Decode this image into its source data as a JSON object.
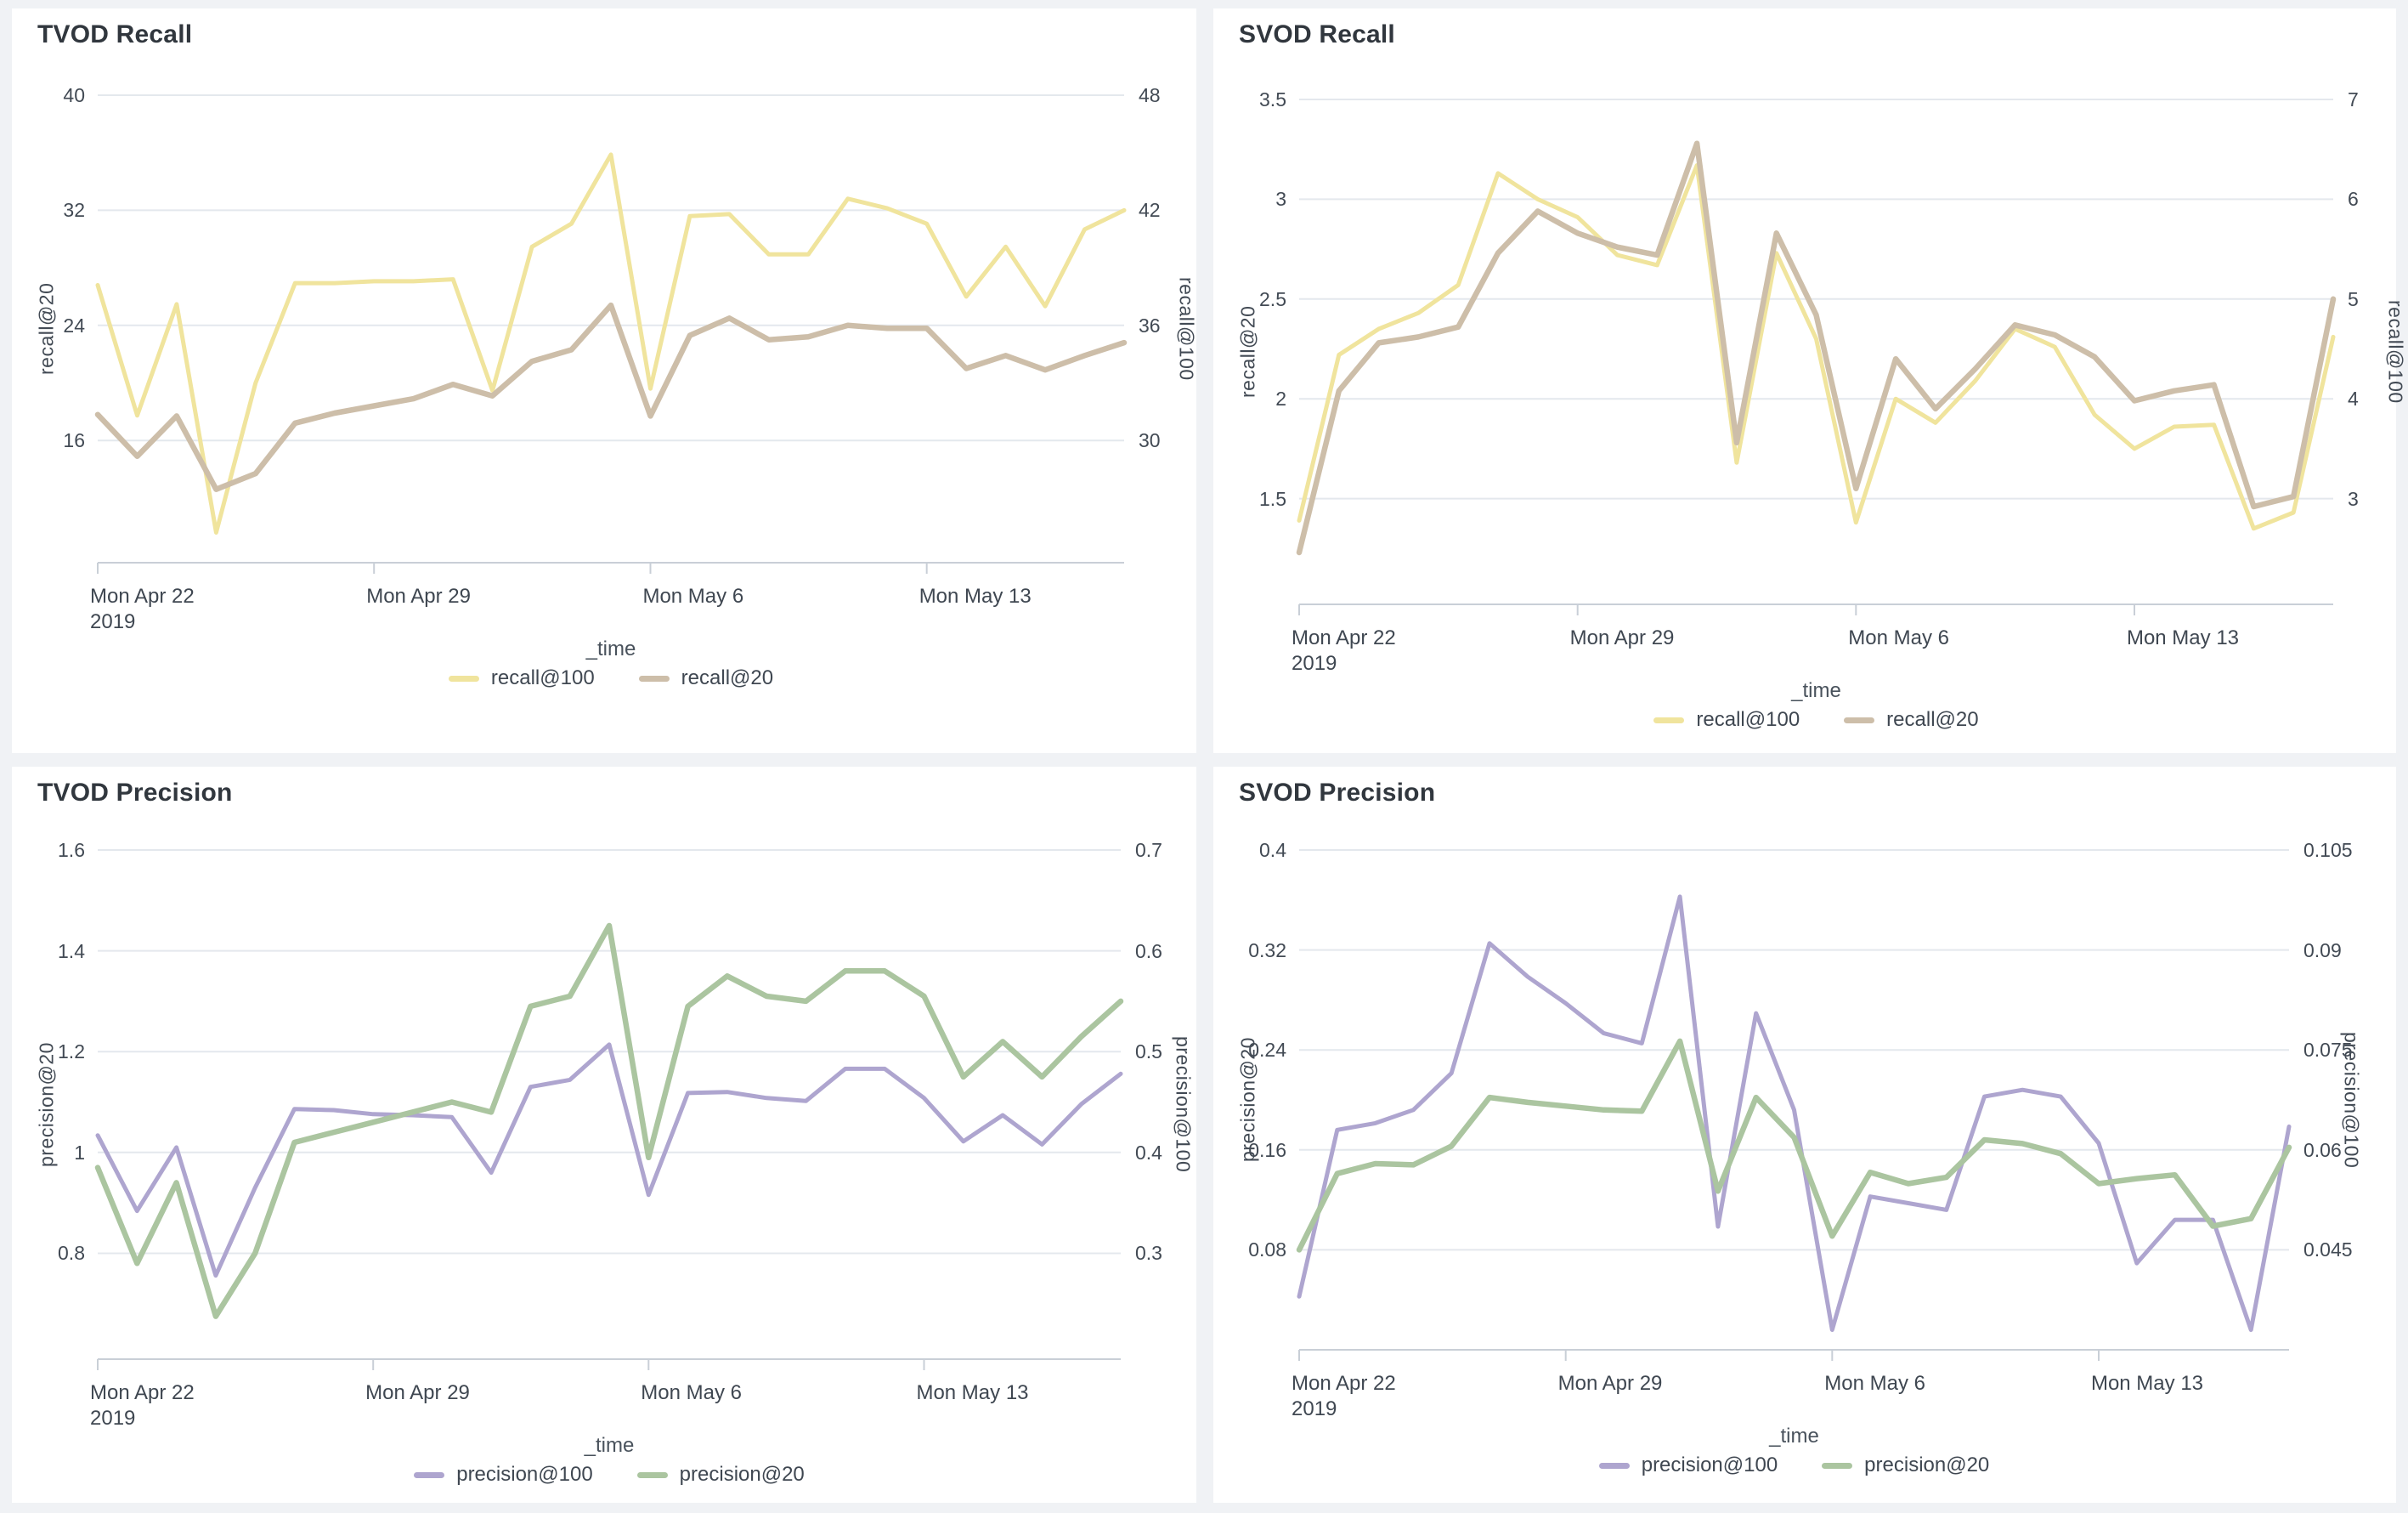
{
  "page": {
    "background_color": "#F0F2F5",
    "card_color": "#FFFFFF",
    "grid_color": "#E4E8ED",
    "axis_line_color": "#C9CFD7",
    "year_label": "2019"
  },
  "colors": {
    "recall@100": "#F0E49D",
    "recall@20": "#CDBEA9",
    "precision@100": "#AEA5CF",
    "precision@20": "#ABC5A0"
  },
  "chart_data": [
    {
      "type": "line",
      "title": "TVOD Recall",
      "xlabel": "_time",
      "x": [
        "2019-04-22",
        "2019-04-23",
        "2019-04-24",
        "2019-04-25",
        "2019-04-26",
        "2019-04-27",
        "2019-04-28",
        "2019-04-29",
        "2019-04-30",
        "2019-05-01",
        "2019-05-02",
        "2019-05-03",
        "2019-05-04",
        "2019-05-05",
        "2019-05-06",
        "2019-05-07",
        "2019-05-08",
        "2019-05-09",
        "2019-05-10",
        "2019-05-11",
        "2019-05-12",
        "2019-05-13",
        "2019-05-14",
        "2019-05-15",
        "2019-05-16",
        "2019-05-17",
        "2019-05-18"
      ],
      "x_tick_labels": [
        "Mon Apr 22",
        "Mon Apr 29",
        "Mon May 6",
        "Mon May 13"
      ],
      "x_tick_indices": [
        0,
        7,
        14,
        21
      ],
      "left_axis": {
        "label": "recall@20",
        "range": [
          7.5,
          40
        ]
      },
      "right_axis": {
        "label": "recall@100"
      },
      "y_ticks": [
        {
          "left_value": 16,
          "left_label": "16",
          "right_label": "30"
        },
        {
          "left_value": 24,
          "left_label": "24",
          "right_label": "36"
        },
        {
          "left_value": 32,
          "left_label": "32",
          "right_label": "42"
        },
        {
          "left_value": 40,
          "left_label": "40",
          "right_label": "48"
        }
      ],
      "series": [
        {
          "name": "recall@100",
          "axis": "right",
          "values": [
            38.1,
            31.3,
            37.1,
            25.2,
            33.0,
            38.2,
            38.2,
            38.3,
            38.3,
            38.4,
            32.6,
            40.1,
            41.3,
            44.9,
            32.7,
            41.7,
            41.8,
            39.7,
            39.7,
            42.6,
            42.1,
            41.3,
            37.5,
            40.1,
            37.0,
            41.0,
            42.0
          ]
        },
        {
          "name": "recall@20",
          "axis": "left",
          "values": [
            17.8,
            14.9,
            17.7,
            12.6,
            13.7,
            17.2,
            17.9,
            18.4,
            18.9,
            19.9,
            19.1,
            21.5,
            22.3,
            25.4,
            17.7,
            23.3,
            24.5,
            23.0,
            23.2,
            24.0,
            23.8,
            23.8,
            21.0,
            21.9,
            20.9,
            21.9,
            22.8
          ]
        }
      ]
    },
    {
      "type": "line",
      "title": "SVOD Recall",
      "xlabel": "_time",
      "x": [
        "2019-04-22",
        "2019-04-23",
        "2019-04-24",
        "2019-04-25",
        "2019-04-26",
        "2019-04-27",
        "2019-04-28",
        "2019-04-29",
        "2019-04-30",
        "2019-05-01",
        "2019-05-02",
        "2019-05-03",
        "2019-05-04",
        "2019-05-05",
        "2019-05-06",
        "2019-05-07",
        "2019-05-08",
        "2019-05-09",
        "2019-05-10",
        "2019-05-11",
        "2019-05-12",
        "2019-05-13",
        "2019-05-14",
        "2019-05-15",
        "2019-05-16",
        "2019-05-17",
        "2019-05-18"
      ],
      "x_tick_labels": [
        "Mon Apr 22",
        "Mon Apr 29",
        "Mon May 6",
        "Mon May 13"
      ],
      "x_tick_indices": [
        0,
        7,
        14,
        21
      ],
      "left_axis": {
        "label": "recall@20",
        "range": [
          0.97,
          3.5
        ]
      },
      "right_axis": {
        "label": "recall@100"
      },
      "y_ticks": [
        {
          "left_value": 1.5,
          "left_label": "1.5",
          "right_label": "3"
        },
        {
          "left_value": 2,
          "left_label": "2",
          "right_label": "4"
        },
        {
          "left_value": 2.5,
          "left_label": "2.5",
          "right_label": "5"
        },
        {
          "left_value": 3,
          "left_label": "3",
          "right_label": "6"
        },
        {
          "left_value": 3.5,
          "left_label": "3.5",
          "right_label": "7"
        }
      ],
      "series": [
        {
          "name": "recall@100",
          "axis": "right",
          "values": [
            2.78,
            4.44,
            4.7,
            4.86,
            5.14,
            6.26,
            6.0,
            5.82,
            5.44,
            5.34,
            6.34,
            3.36,
            5.46,
            4.6,
            2.76,
            4.0,
            3.76,
            4.18,
            4.7,
            4.52,
            3.84,
            3.5,
            3.72,
            3.74,
            2.7,
            2.86,
            4.62
          ]
        },
        {
          "name": "recall@20",
          "axis": "left",
          "values": [
            1.23,
            2.04,
            2.28,
            2.31,
            2.36,
            2.73,
            2.94,
            2.83,
            2.76,
            2.72,
            3.28,
            1.78,
            2.83,
            2.42,
            1.55,
            2.2,
            1.95,
            2.15,
            2.37,
            2.32,
            2.21,
            1.99,
            2.04,
            2.07,
            1.46,
            1.51,
            2.5
          ]
        }
      ]
    },
    {
      "type": "line",
      "title": "TVOD Precision",
      "xlabel": "_time",
      "x": [
        "2019-04-22",
        "2019-04-23",
        "2019-04-24",
        "2019-04-25",
        "2019-04-26",
        "2019-04-27",
        "2019-04-28",
        "2019-04-29",
        "2019-04-30",
        "2019-05-01",
        "2019-05-02",
        "2019-05-03",
        "2019-05-04",
        "2019-05-05",
        "2019-05-06",
        "2019-05-07",
        "2019-05-08",
        "2019-05-09",
        "2019-05-10",
        "2019-05-11",
        "2019-05-12",
        "2019-05-13",
        "2019-05-14",
        "2019-05-15",
        "2019-05-16",
        "2019-05-17",
        "2019-05-18"
      ],
      "x_tick_labels": [
        "Mon Apr 22",
        "Mon Apr 29",
        "Mon May 6",
        "Mon May 13"
      ],
      "x_tick_indices": [
        0,
        7,
        14,
        21
      ],
      "left_axis": {
        "label": "precision@20",
        "range": [
          0.59,
          1.6
        ]
      },
      "right_axis": {
        "label": "precision@100"
      },
      "y_ticks": [
        {
          "left_value": 0.8,
          "left_label": "0.8",
          "right_label": "0.3"
        },
        {
          "left_value": 1,
          "left_label": "1",
          "right_label": "0.4"
        },
        {
          "left_value": 1.2,
          "left_label": "1.2",
          "right_label": "0.5"
        },
        {
          "left_value": 1.4,
          "left_label": "1.4",
          "right_label": "0.6"
        },
        {
          "left_value": 1.6,
          "left_label": "1.6",
          "right_label": "0.7"
        }
      ],
      "series": [
        {
          "name": "precision@100",
          "axis": "right",
          "values": [
            0.417,
            0.342,
            0.405,
            0.278,
            0.365,
            0.443,
            0.442,
            0.438,
            0.437,
            0.435,
            0.38,
            0.465,
            0.472,
            0.507,
            0.358,
            0.459,
            0.46,
            0.454,
            0.451,
            0.483,
            0.483,
            0.454,
            0.411,
            0.437,
            0.408,
            0.448,
            0.478
          ]
        },
        {
          "name": "precision@20",
          "axis": "left",
          "values": [
            0.97,
            0.78,
            0.94,
            0.675,
            0.8,
            1.02,
            1.04,
            1.06,
            1.08,
            1.1,
            1.08,
            1.29,
            1.31,
            1.45,
            0.99,
            1.29,
            1.35,
            1.31,
            1.3,
            1.36,
            1.36,
            1.31,
            1.15,
            1.22,
            1.15,
            1.23,
            1.3
          ]
        }
      ]
    },
    {
      "type": "line",
      "title": "SVOD Precision",
      "xlabel": "_time",
      "x": [
        "2019-04-22",
        "2019-04-23",
        "2019-04-24",
        "2019-04-25",
        "2019-04-26",
        "2019-04-27",
        "2019-04-28",
        "2019-04-29",
        "2019-04-30",
        "2019-05-01",
        "2019-05-02",
        "2019-05-03",
        "2019-05-04",
        "2019-05-05",
        "2019-05-06",
        "2019-05-07",
        "2019-05-08",
        "2019-05-09",
        "2019-05-10",
        "2019-05-11",
        "2019-05-12",
        "2019-05-13",
        "2019-05-14",
        "2019-05-15",
        "2019-05-16",
        "2019-05-17",
        "2019-05-18"
      ],
      "x_tick_labels": [
        "Mon Apr 22",
        "Mon Apr 29",
        "Mon May 6",
        "Mon May 13"
      ],
      "x_tick_indices": [
        0,
        7,
        14,
        21
      ],
      "left_axis": {
        "label": "precision@20",
        "range": [
          0,
          0.4
        ]
      },
      "right_axis": {
        "label": "precision@100"
      },
      "y_ticks": [
        {
          "left_value": 0.08,
          "left_label": "0.08",
          "right_label": "0.045"
        },
        {
          "left_value": 0.16,
          "left_label": "0.16",
          "right_label": "0.06"
        },
        {
          "left_value": 0.24,
          "left_label": "0.24",
          "right_label": "0.075"
        },
        {
          "left_value": 0.32,
          "left_label": "0.32",
          "right_label": "0.09"
        },
        {
          "left_value": 0.4,
          "left_label": "0.4",
          "right_label": "0.105"
        }
      ],
      "series": [
        {
          "name": "precision@100",
          "axis": "right",
          "values": [
            0.038,
            0.063,
            0.064,
            0.066,
            0.0715,
            0.091,
            0.086,
            0.082,
            0.0775,
            0.076,
            0.098,
            0.0485,
            0.0805,
            0.066,
            0.033,
            0.053,
            0.052,
            0.051,
            0.068,
            0.069,
            0.068,
            0.061,
            0.043,
            0.0495,
            0.0495,
            0.033,
            0.0635
          ]
        },
        {
          "name": "precision@20",
          "axis": "left",
          "values": [
            0.08,
            0.141,
            0.149,
            0.148,
            0.163,
            0.202,
            0.198,
            0.195,
            0.192,
            0.191,
            0.247,
            0.127,
            0.202,
            0.17,
            0.091,
            0.142,
            0.133,
            0.138,
            0.168,
            0.165,
            0.157,
            0.133,
            0.137,
            0.14,
            0.099,
            0.105,
            0.162
          ]
        }
      ]
    }
  ]
}
